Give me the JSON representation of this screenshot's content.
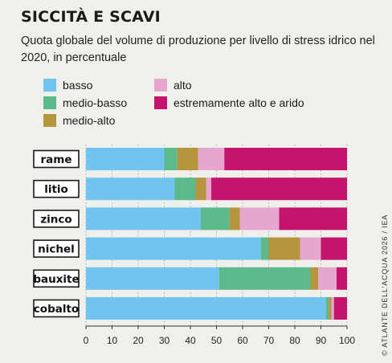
{
  "title": "SICCITÀ E SCAVI",
  "subtitle": "Quota globale del volume di produzione per livello di stress idrico nel 2020, in percentuale",
  "credit": "© ATLANTE DELL'ACQUA 2026 / IEA",
  "colors": {
    "basso": "#72c4f0",
    "medio-basso": "#5bb98a",
    "medio-alto": "#b5953e",
    "alto": "#e6a6cd",
    "estremamente": "#c4146e"
  },
  "chart_data": {
    "type": "bar",
    "orientation": "horizontal",
    "stacked": true,
    "title": "SICCITÀ E SCAVI",
    "subtitle": "Quota globale del volume di produzione per livello di stress idrico nel 2020, in percentuale",
    "xlabel": "",
    "ylabel": "",
    "xlim": [
      0,
      100
    ],
    "xticks": [
      0,
      10,
      20,
      30,
      40,
      50,
      60,
      70,
      80,
      90,
      100
    ],
    "grid": true,
    "legend_position": "top",
    "categories": [
      "rame",
      "litio",
      "zinco",
      "nichel",
      "bauxite",
      "cobalto"
    ],
    "series": [
      {
        "name": "basso",
        "values": [
          30,
          34,
          44,
          67,
          51,
          92
        ]
      },
      {
        "name": "medio-basso",
        "values": [
          5,
          8,
          11,
          3,
          35,
          1
        ]
      },
      {
        "name": "medio-alto",
        "values": [
          8,
          4,
          4,
          12,
          3,
          1
        ]
      },
      {
        "name": "alto",
        "values": [
          10,
          2,
          15,
          8,
          7,
          1
        ]
      },
      {
        "name": "estremamente alto e arido",
        "values": [
          47,
          52,
          26,
          10,
          4,
          5
        ]
      }
    ]
  }
}
